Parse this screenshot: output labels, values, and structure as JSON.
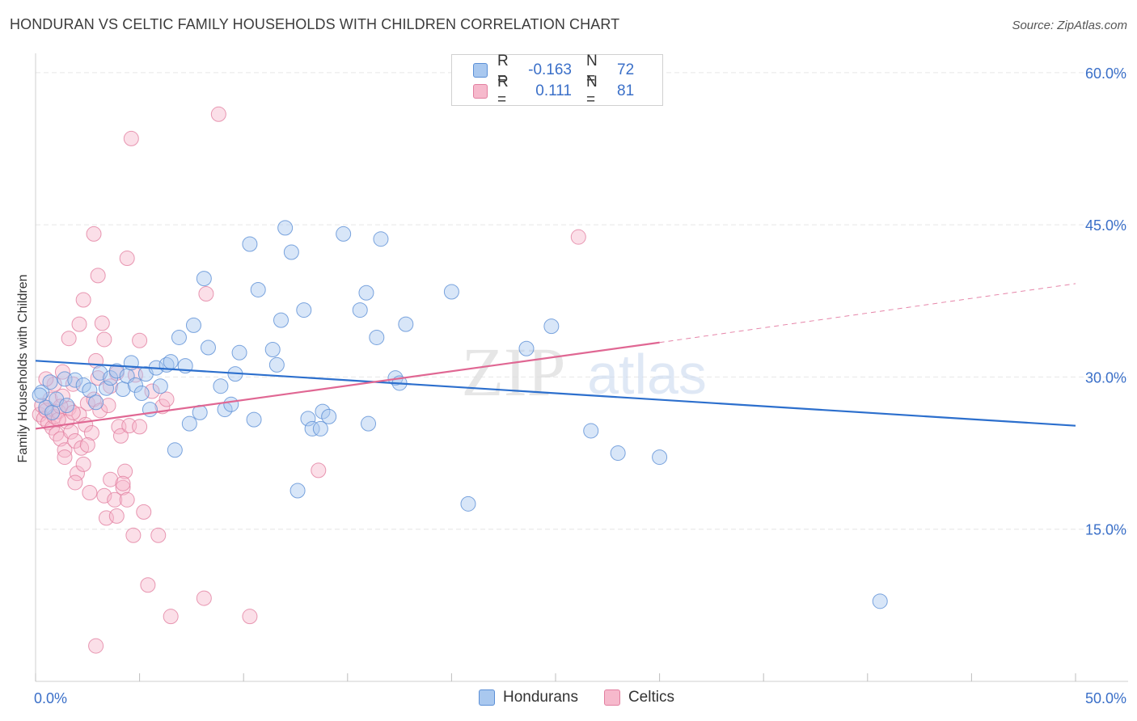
{
  "title": "HONDURAN VS CELTIC FAMILY HOUSEHOLDS WITH CHILDREN CORRELATION CHART",
  "source": "Source: ZipAtlas.com",
  "watermark": {
    "zip": "ZIP",
    "atlas": "atlas"
  },
  "legend_top": [
    {
      "r_label": "R =",
      "r_value": "-0.163",
      "n_label": "N =",
      "n_value": "72"
    },
    {
      "r_label": "R =",
      "r_value": "0.111",
      "n_label": "N =",
      "n_value": "81"
    }
  ],
  "colors": {
    "honduran_fill": "#a9c8ef",
    "honduran_stroke": "#5b8fd6",
    "honduran_line": "#2c6fcd",
    "celtic_fill": "#f6b9cc",
    "celtic_stroke": "#e27fa0",
    "celtic_line": "#e06793",
    "axis_label": "#3a6fc8",
    "grid": "#e6e6e6"
  },
  "chart_data": {
    "type": "scatter",
    "title": "HONDURAN VS CELTIC FAMILY HOUSEHOLDS WITH CHILDREN CORRELATION CHART",
    "xlabel": "",
    "ylabel": "Family Households with Children",
    "xlim": [
      0,
      50
    ],
    "ylim": [
      0,
      61.5
    ],
    "x_tick_labels": [
      "0.0%",
      "50.0%"
    ],
    "y_ticks": [
      15,
      30,
      45,
      60
    ],
    "y_tick_labels": [
      "15.0%",
      "30.0%",
      "45.0%",
      "60.0%"
    ],
    "grid": true,
    "legend_position": "bottom-center",
    "series": [
      {
        "name": "Hondurans",
        "color": "#a9c8ef",
        "r": -0.163,
        "n": 72,
        "trend": {
          "x": [
            0,
            50
          ],
          "y": [
            31.6,
            25.2
          ],
          "dashed_to": null
        },
        "points": [
          [
            0.3,
            28.5
          ],
          [
            0.5,
            27.0
          ],
          [
            0.7,
            29.5
          ],
          [
            0.8,
            26.5
          ],
          [
            1.0,
            27.8
          ],
          [
            1.4,
            29.8
          ],
          [
            1.5,
            27.2
          ],
          [
            1.9,
            29.7
          ],
          [
            2.3,
            29.2
          ],
          [
            2.6,
            28.7
          ],
          [
            2.9,
            27.5
          ],
          [
            3.1,
            30.4
          ],
          [
            3.4,
            28.9
          ],
          [
            3.6,
            29.9
          ],
          [
            3.9,
            30.6
          ],
          [
            4.2,
            28.8
          ],
          [
            4.4,
            30.1
          ],
          [
            4.6,
            31.4
          ],
          [
            4.8,
            29.2
          ],
          [
            5.1,
            28.4
          ],
          [
            5.3,
            30.3
          ],
          [
            5.5,
            26.8
          ],
          [
            5.8,
            30.9
          ],
          [
            6.0,
            29.1
          ],
          [
            6.3,
            31.2
          ],
          [
            6.5,
            31.5
          ],
          [
            6.7,
            22.8
          ],
          [
            6.9,
            33.9
          ],
          [
            7.2,
            31.1
          ],
          [
            7.4,
            25.4
          ],
          [
            7.6,
            35.1
          ],
          [
            7.9,
            26.5
          ],
          [
            8.1,
            39.7
          ],
          [
            8.3,
            32.9
          ],
          [
            8.9,
            29.1
          ],
          [
            9.1,
            26.8
          ],
          [
            9.4,
            27.3
          ],
          [
            9.6,
            30.3
          ],
          [
            9.8,
            32.4
          ],
          [
            10.3,
            43.1
          ],
          [
            10.5,
            25.8
          ],
          [
            10.7,
            38.6
          ],
          [
            11.4,
            32.7
          ],
          [
            11.6,
            31.2
          ],
          [
            11.8,
            35.6
          ],
          [
            12.0,
            44.7
          ],
          [
            12.3,
            42.3
          ],
          [
            12.6,
            18.8
          ],
          [
            12.9,
            36.6
          ],
          [
            13.1,
            25.9
          ],
          [
            13.3,
            24.9
          ],
          [
            13.7,
            24.9
          ],
          [
            13.8,
            26.6
          ],
          [
            14.1,
            26.1
          ],
          [
            14.8,
            44.1
          ],
          [
            15.6,
            36.6
          ],
          [
            15.9,
            38.3
          ],
          [
            16.0,
            25.4
          ],
          [
            16.4,
            33.9
          ],
          [
            16.6,
            43.6
          ],
          [
            17.3,
            29.9
          ],
          [
            17.5,
            29.4
          ],
          [
            17.8,
            35.2
          ],
          [
            20.0,
            38.4
          ],
          [
            20.8,
            17.5
          ],
          [
            23.6,
            32.8
          ],
          [
            24.8,
            35.0
          ],
          [
            26.7,
            24.7
          ],
          [
            28.0,
            22.5
          ],
          [
            30.0,
            22.1
          ],
          [
            40.6,
            7.9
          ],
          [
            0.2,
            28.2
          ]
        ]
      },
      {
        "name": "Celtics",
        "color": "#f6b9cc",
        "r": 0.111,
        "n": 81,
        "trend": {
          "x": [
            0,
            30
          ],
          "y": [
            24.9,
            33.4
          ],
          "dashed_to": [
            50,
            39.2
          ]
        },
        "points": [
          [
            0.2,
            26.3
          ],
          [
            0.3,
            27.2
          ],
          [
            0.4,
            25.9
          ],
          [
            0.5,
            26.7
          ],
          [
            0.6,
            25.5
          ],
          [
            0.7,
            27.8
          ],
          [
            0.8,
            25.0
          ],
          [
            0.9,
            26.1
          ],
          [
            1.0,
            24.4
          ],
          [
            1.1,
            26.6
          ],
          [
            1.2,
            23.9
          ],
          [
            1.3,
            28.1
          ],
          [
            1.4,
            22.8
          ],
          [
            1.5,
            25.6
          ],
          [
            1.6,
            26.9
          ],
          [
            1.7,
            24.6
          ],
          [
            1.8,
            29.3
          ],
          [
            1.9,
            23.7
          ],
          [
            2.0,
            20.5
          ],
          [
            2.1,
            26.3
          ],
          [
            2.2,
            23.0
          ],
          [
            2.3,
            21.4
          ],
          [
            2.4,
            25.3
          ],
          [
            2.5,
            27.4
          ],
          [
            2.6,
            18.6
          ],
          [
            2.7,
            24.5
          ],
          [
            2.8,
            27.8
          ],
          [
            2.9,
            31.6
          ],
          [
            3.0,
            29.9
          ],
          [
            3.1,
            26.7
          ],
          [
            3.2,
            35.3
          ],
          [
            3.3,
            18.3
          ],
          [
            3.4,
            16.1
          ],
          [
            3.5,
            27.2
          ],
          [
            3.6,
            19.9
          ],
          [
            3.8,
            17.9
          ],
          [
            3.9,
            16.3
          ],
          [
            4.0,
            25.1
          ],
          [
            4.1,
            24.2
          ],
          [
            4.2,
            19.1
          ],
          [
            4.3,
            20.7
          ],
          [
            4.4,
            17.9
          ],
          [
            4.5,
            25.2
          ],
          [
            4.7,
            14.4
          ],
          [
            4.8,
            30.2
          ],
          [
            5.0,
            33.6
          ],
          [
            5.2,
            16.7
          ],
          [
            5.4,
            9.5
          ],
          [
            5.6,
            28.6
          ],
          [
            5.9,
            14.4
          ],
          [
            6.1,
            27.1
          ],
          [
            6.3,
            27.8
          ],
          [
            6.5,
            6.4
          ],
          [
            8.1,
            8.2
          ],
          [
            8.2,
            38.2
          ],
          [
            8.8,
            55.9
          ],
          [
            10.3,
            6.4
          ],
          [
            13.6,
            20.8
          ],
          [
            26.1,
            43.8
          ],
          [
            0.9,
            29.3
          ],
          [
            1.3,
            30.5
          ],
          [
            1.6,
            33.8
          ],
          [
            1.9,
            19.6
          ],
          [
            2.1,
            35.2
          ],
          [
            2.3,
            37.6
          ],
          [
            2.5,
            23.3
          ],
          [
            2.8,
            44.1
          ],
          [
            3.0,
            40.0
          ],
          [
            3.3,
            33.7
          ],
          [
            3.6,
            29.1
          ],
          [
            3.9,
            30.4
          ],
          [
            4.2,
            19.5
          ],
          [
            4.4,
            41.7
          ],
          [
            4.6,
            53.5
          ],
          [
            5.0,
            25.1
          ],
          [
            1.1,
            25.8
          ],
          [
            1.2,
            27.1
          ],
          [
            2.9,
            3.5
          ],
          [
            1.8,
            26.5
          ],
          [
            0.5,
            29.8
          ],
          [
            1.4,
            22.1
          ]
        ]
      }
    ]
  },
  "legend_bottom": [
    {
      "label": "Hondurans"
    },
    {
      "label": "Celtics"
    }
  ]
}
